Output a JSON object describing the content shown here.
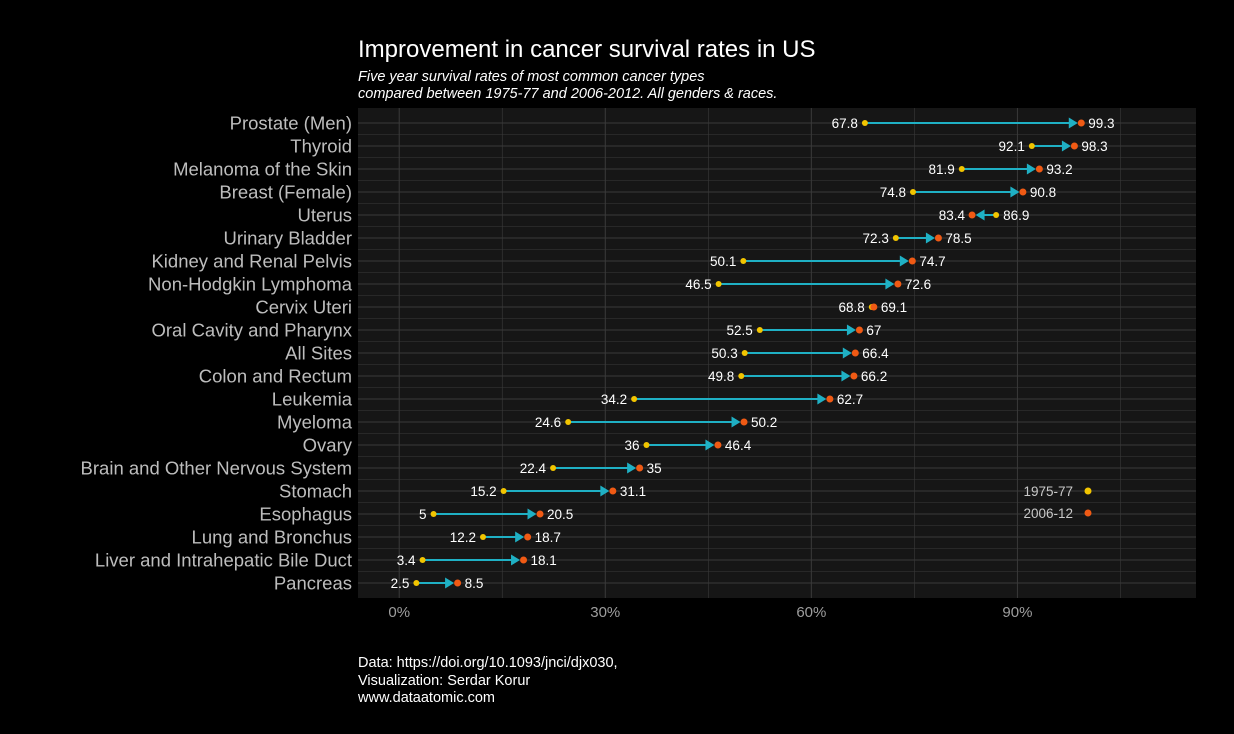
{
  "title": "Improvement in cancer survival rates in US",
  "subtitle_line1": "Five year survival rates of most common cancer types",
  "subtitle_line2": "compared between 1975-77 and 2006-2012. All genders & races.",
  "caption_line1": "Data: https://doi.org/10.1093/jnci/djx030,",
  "caption_line2": "Visualization: Serdar Korur",
  "caption_line3": "www.dataatomic.com",
  "colors": {
    "background": "#000000",
    "panel": "#161616",
    "grid": "#3a3a3a",
    "start_point": "#f2c500",
    "end_point": "#f05a14",
    "arrow": "#1fb0c4"
  },
  "chart_data": {
    "type": "dumbbell",
    "x_ticks": [
      "0%",
      "30%",
      "60%",
      "90%"
    ],
    "x_tick_values": [
      0,
      30,
      60,
      90
    ],
    "xlim": [
      -6,
      116
    ],
    "grid": true,
    "legend": {
      "placement": "inside-right",
      "entries": [
        {
          "label": "1975-77",
          "color_key": "start_point"
        },
        {
          "label": "2006-12",
          "color_key": "end_point"
        }
      ]
    },
    "categories": [
      "Prostate (Men)",
      "Thyroid",
      "Melanoma of the Skin",
      "Breast (Female)",
      "Uterus",
      "Urinary Bladder",
      "Kidney and Renal Pelvis",
      "Non-Hodgkin Lymphoma",
      "Cervix Uteri",
      "Oral Cavity and Pharynx",
      "All Sites",
      "Colon and Rectum",
      "Leukemia",
      "Myeloma",
      "Ovary",
      "Brain and Other Nervous System",
      "Stomach",
      "Esophagus",
      "Lung and Bronchus",
      "Liver and Intrahepatic Bile Duct",
      "Pancreas"
    ],
    "series": [
      {
        "name": "1975-77",
        "values": [
          67.8,
          92.1,
          81.9,
          74.8,
          86.9,
          72.3,
          50.1,
          46.5,
          68.8,
          52.5,
          50.3,
          49.8,
          34.2,
          24.6,
          36,
          22.4,
          15.2,
          5,
          12.2,
          3.4,
          2.5
        ]
      },
      {
        "name": "2006-12",
        "values": [
          99.3,
          98.3,
          93.2,
          90.8,
          83.4,
          78.5,
          74.7,
          72.6,
          69.1,
          67,
          66.4,
          66.2,
          62.7,
          50.2,
          46.4,
          35,
          31.1,
          20.5,
          18.7,
          18.1,
          8.5
        ]
      }
    ]
  }
}
